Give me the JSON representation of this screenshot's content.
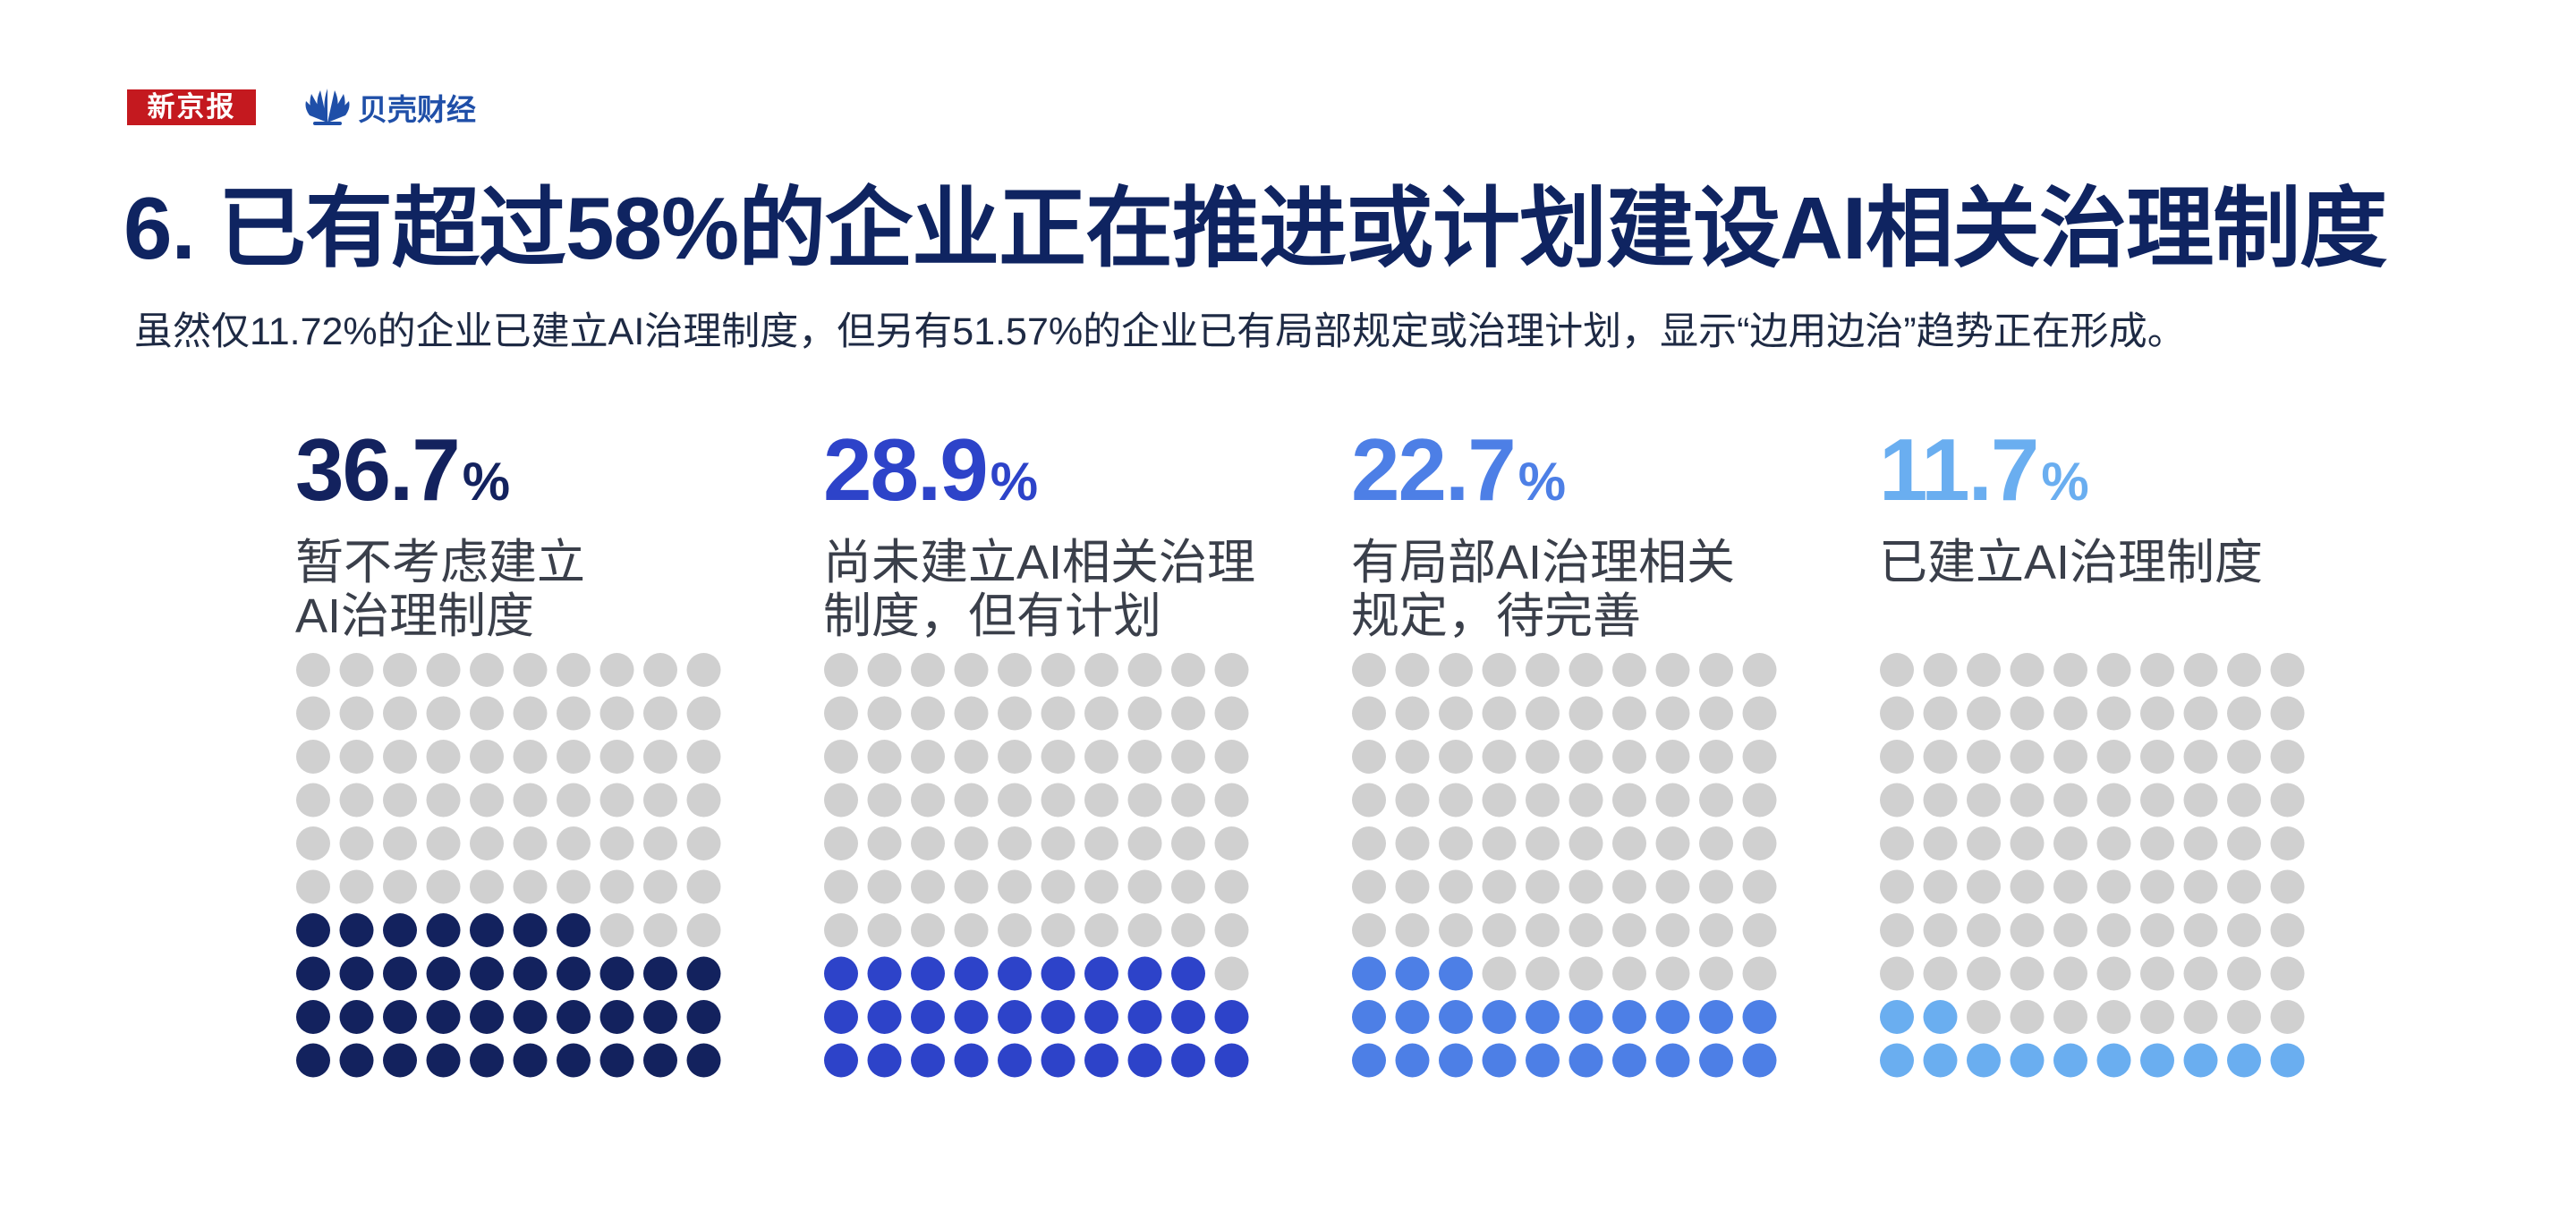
{
  "header": {
    "logo_xinjingbao": "新京报",
    "logo_beike": "贝壳财经",
    "title": "6. 已有超过58%的企业正在推进或计划建设AI相关治理制度",
    "subtitle": "虽然仅11.72%的企业已建立AI治理制度，但另有51.57%的企业已有局部规定或治理计划，显示“边用边治”趋势正在形成。"
  },
  "colors": {
    "title": "#0f2461",
    "dot_empty": "#d0d0d0",
    "series": [
      "#13225e",
      "#2d43c9",
      "#4d7fe6",
      "#6aaef0"
    ]
  },
  "chart_data": {
    "type": "waffle",
    "grid": [
      10,
      10
    ],
    "unit": "%",
    "categories": [
      {
        "value_text": "36.7",
        "label": "暂不考虑建立\nAI治理制度",
        "dots": 37
      },
      {
        "value_text": "28.9",
        "label": "尚未建立AI相关治理\n制度，但有计划",
        "dots": 29
      },
      {
        "value_text": "22.7",
        "label": "有局部AI治理相关\n规定，待完善",
        "dots": 23
      },
      {
        "value_text": "11.7",
        "label": "已建立AI治理制度",
        "dots": 12
      }
    ]
  }
}
